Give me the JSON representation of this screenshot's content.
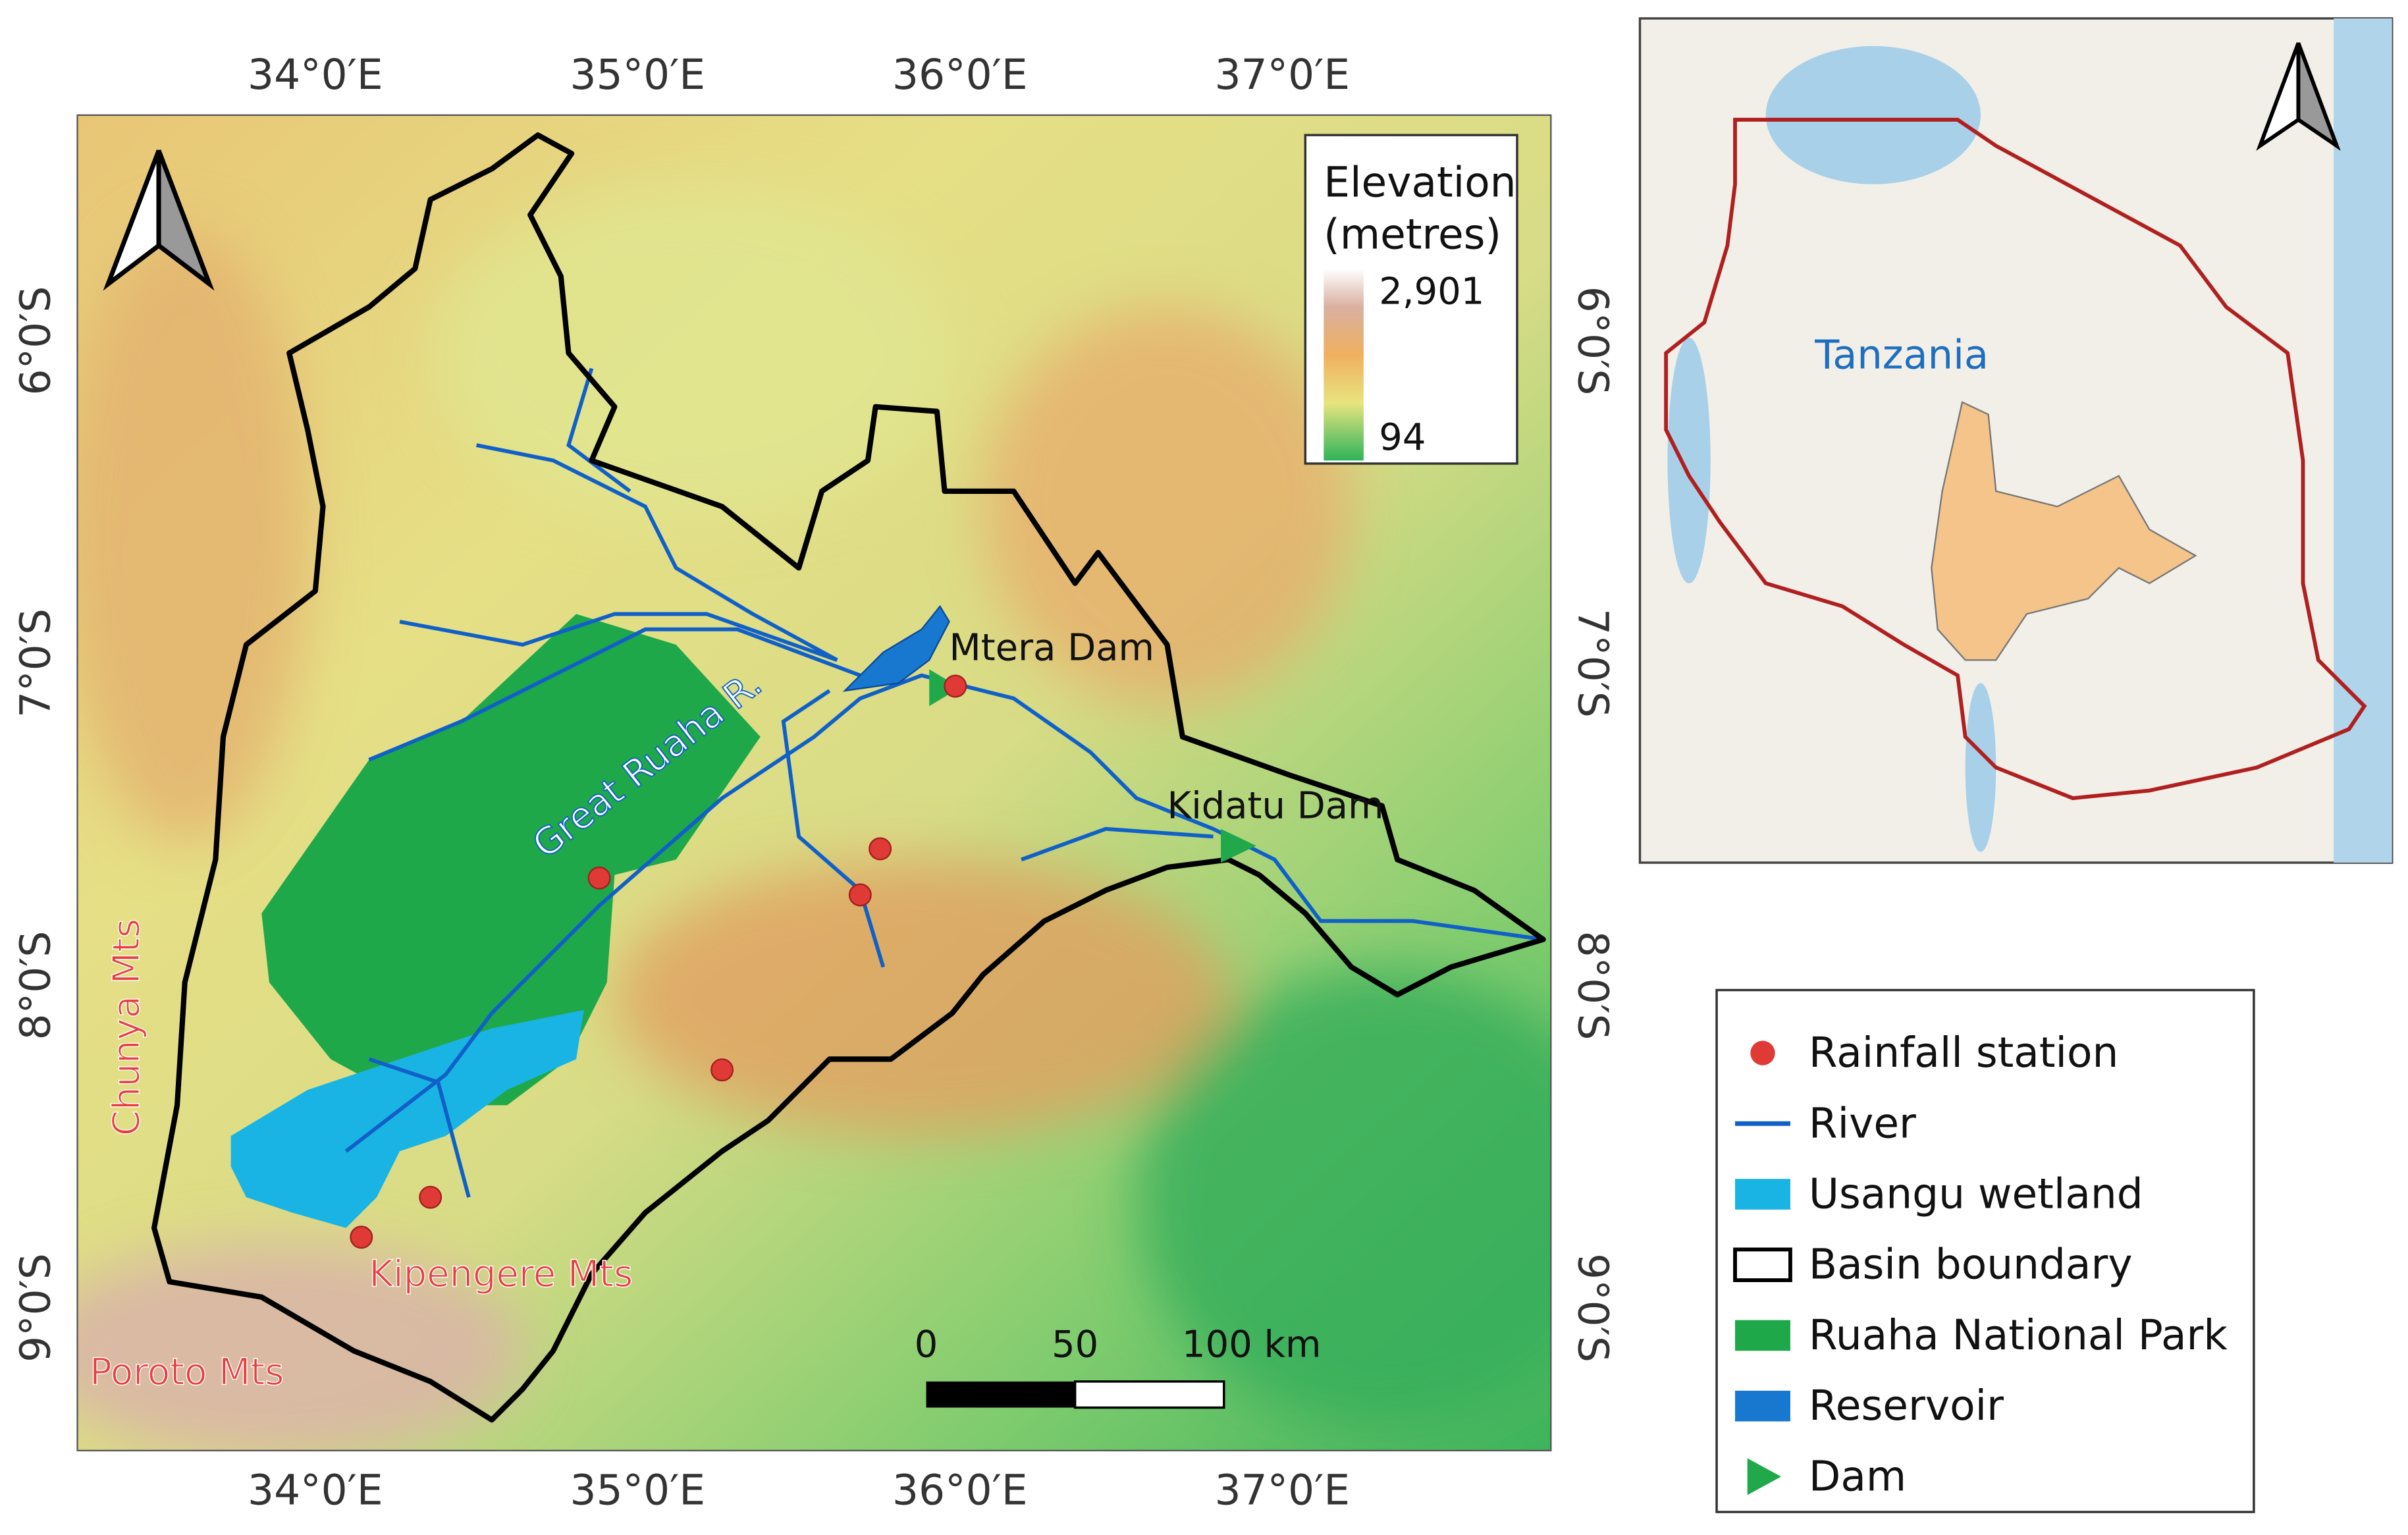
{
  "map": {
    "top_lon_labels": [
      "34°0′E",
      "35°0′E",
      "36°0′E",
      "37°0′E"
    ],
    "bottom_lon_labels": [
      "34°0′E",
      "35°0′E",
      "36°0′E",
      "37°0′E"
    ],
    "left_lat_labels": [
      "6°0′S",
      "7°0′S",
      "8°0′S",
      "9°0′S"
    ],
    "right_lat_labels": [
      "6°0′S",
      "7°0′S",
      "8°0′S",
      "9°0′S"
    ],
    "elevation_legend": {
      "title": [
        "Elevation",
        "(metres)"
      ],
      "max_label": "2,901",
      "min_label": "94"
    },
    "place_labels": {
      "mtera": "Mtera Dam",
      "river": "Great Ruaha R.",
      "kidatu": "Kidatu Dam",
      "chunya": "Chunya Mts",
      "kipengere": "Kipengere Mts",
      "poroto": "Poroto Mts"
    },
    "scale_bar": {
      "labels": [
        "0",
        "50",
        "100 km"
      ]
    }
  },
  "inset": {
    "label": "Tanzania"
  },
  "legend": {
    "items": [
      "Rainfall station",
      "River",
      "Usangu wetland",
      "Basin boundary",
      "Ruaha National Park",
      "Reservoir",
      "Dam"
    ]
  }
}
